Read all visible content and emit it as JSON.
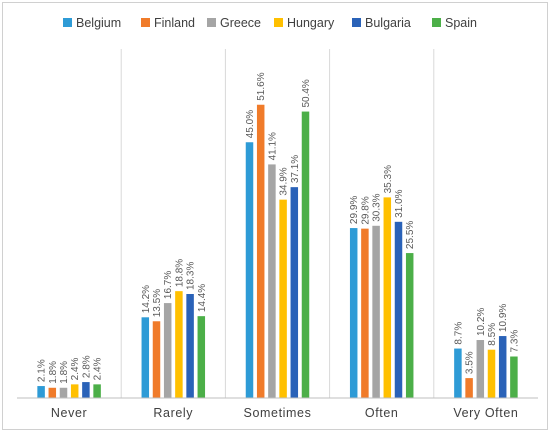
{
  "chart_data": {
    "type": "bar",
    "categories": [
      "Never",
      "Rarely",
      "Sometimes",
      "Often",
      "Very Often"
    ],
    "series": [
      {
        "name": "Belgium",
        "color": "#2e9bd6",
        "values": [
          2.1,
          14.2,
          45.0,
          29.9,
          8.7
        ]
      },
      {
        "name": "Finland",
        "color": "#f07b2a",
        "values": [
          1.8,
          13.5,
          51.6,
          29.8,
          3.5
        ]
      },
      {
        "name": "Greece",
        "color": "#a5a5a5",
        "values": [
          1.8,
          16.7,
          41.1,
          30.3,
          10.2
        ]
      },
      {
        "name": "Hungary",
        "color": "#ffc000",
        "values": [
          2.4,
          18.8,
          34.9,
          35.3,
          8.5
        ]
      },
      {
        "name": "Bulgaria",
        "color": "#2a62b8",
        "values": [
          2.8,
          18.3,
          37.1,
          31.0,
          10.9
        ]
      },
      {
        "name": "Spain",
        "color": "#4caf48",
        "values": [
          2.4,
          14.4,
          50.4,
          25.5,
          7.3
        ]
      }
    ],
    "labels": [
      [
        "2.1%",
        "14.2%",
        "45.0%",
        "29.9%",
        "8.7%"
      ],
      [
        "1.8%",
        "13.5%",
        "51.6%",
        "29.8%",
        "3.5%"
      ],
      [
        "1.8%",
        "16.7%",
        "41.1%",
        "30.3%",
        "10.2%"
      ],
      [
        "2.4%",
        "18.8%",
        "34.9%",
        "35.3%",
        "8.5%"
      ],
      [
        "2.8%",
        "18.3%",
        "37.1%",
        "31.0%",
        "10.9%"
      ],
      [
        "2.4%",
        "14.4%",
        "50.4%",
        "25.5%",
        "7.3%"
      ]
    ],
    "ylim": [
      0,
      60
    ],
    "grid": false,
    "legend_position": "top"
  }
}
